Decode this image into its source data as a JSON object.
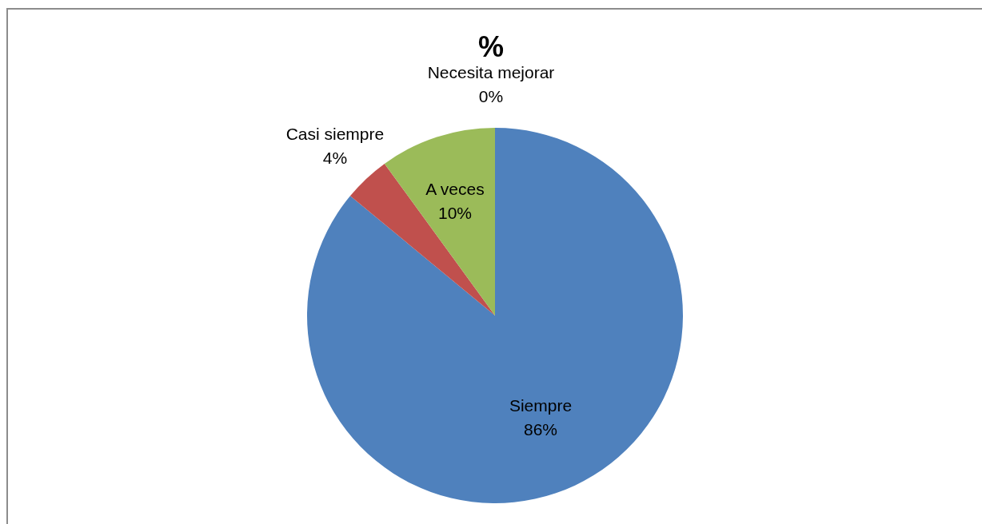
{
  "chart_data": {
    "type": "pie",
    "title": "%",
    "categories": [
      "Siempre",
      "Casi siempre",
      "A veces",
      "Necesita mejorar"
    ],
    "values": [
      86,
      4,
      10,
      0
    ],
    "colors": [
      "#4f81bd",
      "#c0504d",
      "#9bbb59",
      "#8064a2"
    ],
    "value_labels": [
      "86%",
      "4%",
      "10%",
      "0%"
    ]
  }
}
